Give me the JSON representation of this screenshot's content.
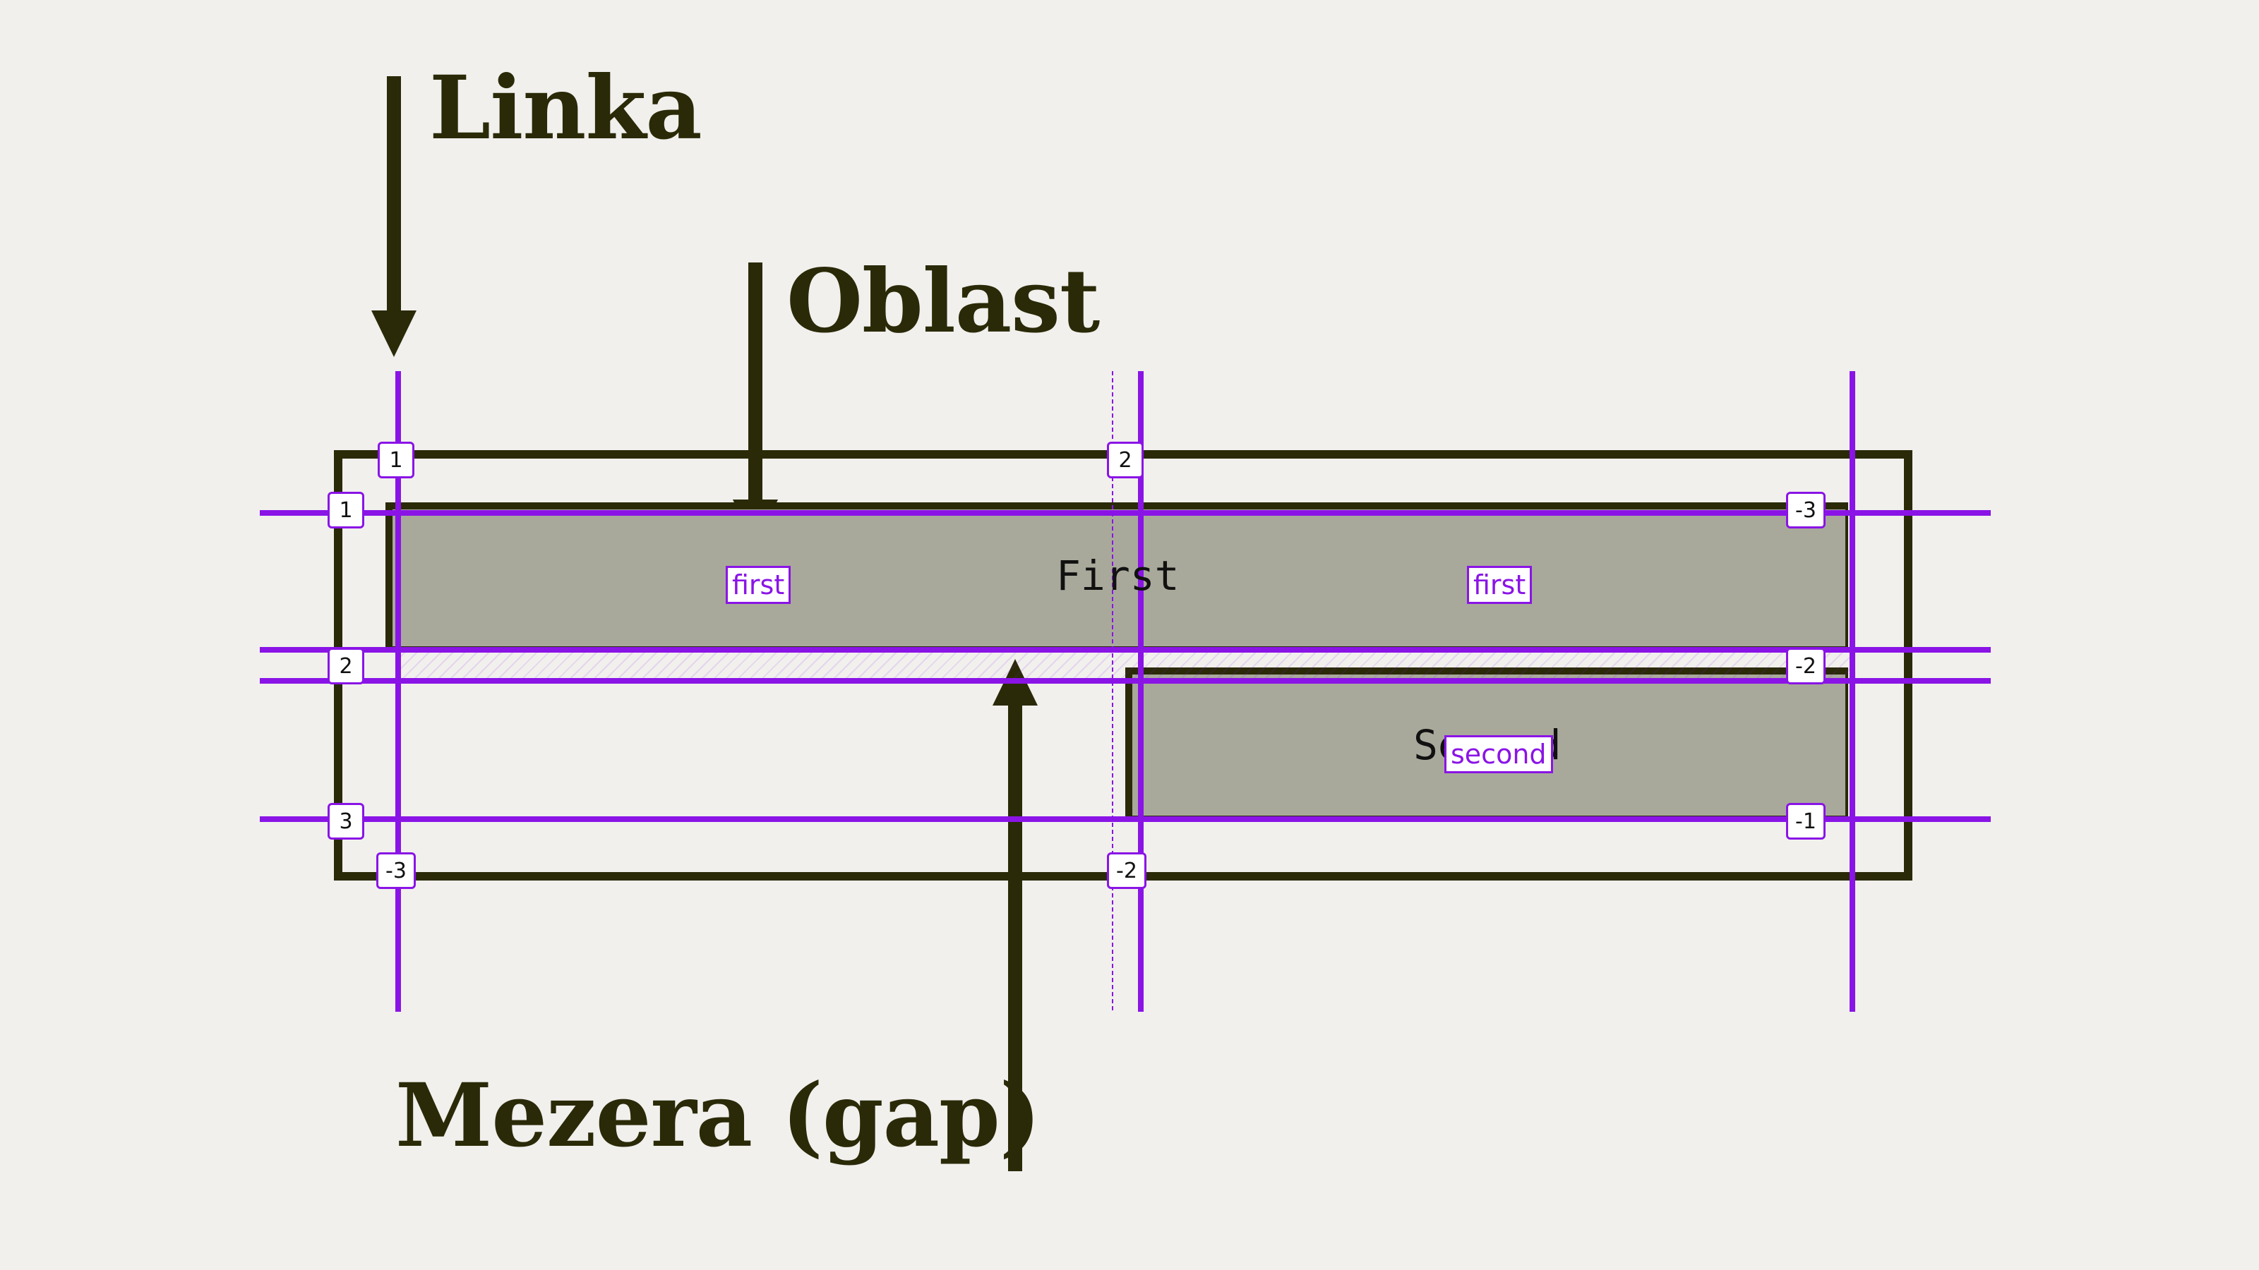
{
  "labels": {
    "linka": "Linka",
    "oblast": "Oblast",
    "mezera": "Mezera (gap)"
  },
  "items": {
    "first": "First",
    "second": "Second"
  },
  "area_names": {
    "first_left": "first",
    "first_right": "first",
    "second": "second"
  },
  "line_numbers": {
    "col_top": [
      "1",
      "2"
    ],
    "col_bottom": [
      "-3",
      "-2"
    ],
    "row_left": [
      "1",
      "2",
      "3"
    ],
    "row_right": [
      "-3",
      "-2",
      "-1"
    ]
  },
  "colors": {
    "grid_line": "#8a14e6",
    "text_dark": "#2a2a08",
    "item_fill": "#a9a99b",
    "background": "#f1f0ed"
  }
}
